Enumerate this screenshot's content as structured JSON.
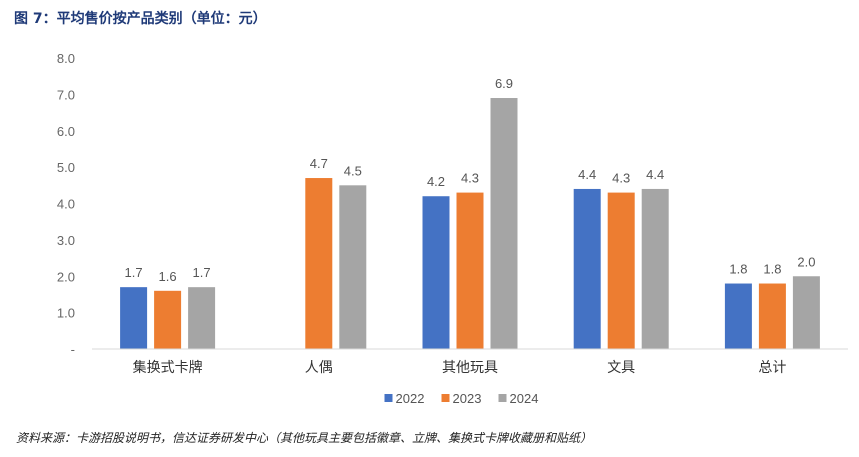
{
  "figure": {
    "title": "图 7：平均售价按产品类别（单位：元）",
    "source": "资料来源：卡游招股说明书，信达证券研发中心（其他玩具主要包括徽章、立牌、集换式卡牌收藏册和贴纸）"
  },
  "chart_data": {
    "type": "bar",
    "title": "图 7：平均售价按产品类别（单位：元）",
    "categories": [
      "集换式卡牌",
      "人偶",
      "其他玩具",
      "文具",
      "总计"
    ],
    "series": [
      {
        "name": "2022",
        "color": "#4472C4",
        "values": [
          1.7,
          null,
          4.2,
          4.4,
          1.8
        ]
      },
      {
        "name": "2023",
        "color": "#ED7D31",
        "values": [
          1.6,
          4.7,
          4.3,
          4.3,
          1.8
        ]
      },
      {
        "name": "2024",
        "color": "#A5A5A5",
        "values": [
          1.7,
          4.5,
          6.9,
          4.4,
          2.0
        ]
      }
    ],
    "xlabel": "",
    "ylabel": "",
    "ylim": [
      0,
      8
    ],
    "yticks": [
      "-",
      "1.0",
      "2.0",
      "3.0",
      "4.0",
      "5.0",
      "6.0",
      "7.0",
      "8.0"
    ],
    "grid": false,
    "legend": "bottom-center",
    "data_labels": true
  }
}
